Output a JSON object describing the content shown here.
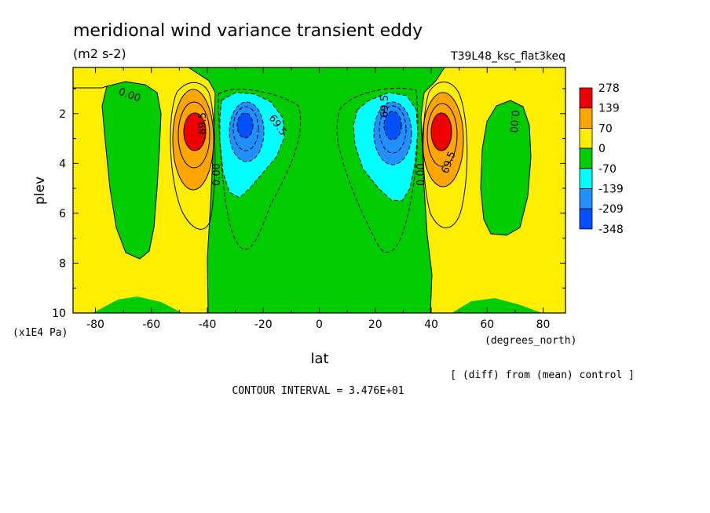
{
  "chart_data": {
    "type": "heatmap",
    "title": "meridional wind variance transient eddy",
    "units": "(m2 s-2)",
    "run_label": "T39L48_ksc_flat3keq",
    "xlabel": "lat",
    "x_units": "(degrees_north)",
    "ylabel": "plev",
    "y_units": "(x1E4 Pa)",
    "xlim": [
      -88,
      88
    ],
    "ylim": [
      10,
      0.15
    ],
    "x_ticks": [
      -80,
      -60,
      -40,
      -20,
      0,
      20,
      40,
      60,
      80
    ],
    "y_ticks": [
      2,
      4,
      6,
      8,
      10
    ],
    "diff_note": "[ (diff) from (mean) control ]",
    "contour_interval": "CONTOUR INTERVAL = 3.476E+01",
    "colorbar": {
      "levels": [
        "278",
        "139",
        "70",
        "0",
        "-70",
        "-139",
        "-209",
        "-348"
      ],
      "colors": [
        "#ee0000",
        "#ffa500",
        "#ffee00",
        "#00cc00",
        "#00ffff",
        "#2090ff",
        "#0050ff"
      ]
    },
    "contour_labels": [
      "0.00",
      "69.5",
      "0.00",
      "69.5",
      "69.5",
      "0.00",
      "69.5",
      "0.00",
      "69.5",
      "0.00"
    ],
    "features": [
      {
        "label": "positive max SH",
        "lat": -44,
        "plev": 2.6,
        "value": 278
      },
      {
        "label": "negative min SH",
        "lat": -27,
        "plev": 2.4,
        "value": -348
      },
      {
        "label": "negative min NH",
        "lat": 27,
        "plev": 2.5,
        "value": -348
      },
      {
        "label": "positive max NH",
        "lat": 44,
        "plev": 2.6,
        "value": 278
      }
    ]
  }
}
